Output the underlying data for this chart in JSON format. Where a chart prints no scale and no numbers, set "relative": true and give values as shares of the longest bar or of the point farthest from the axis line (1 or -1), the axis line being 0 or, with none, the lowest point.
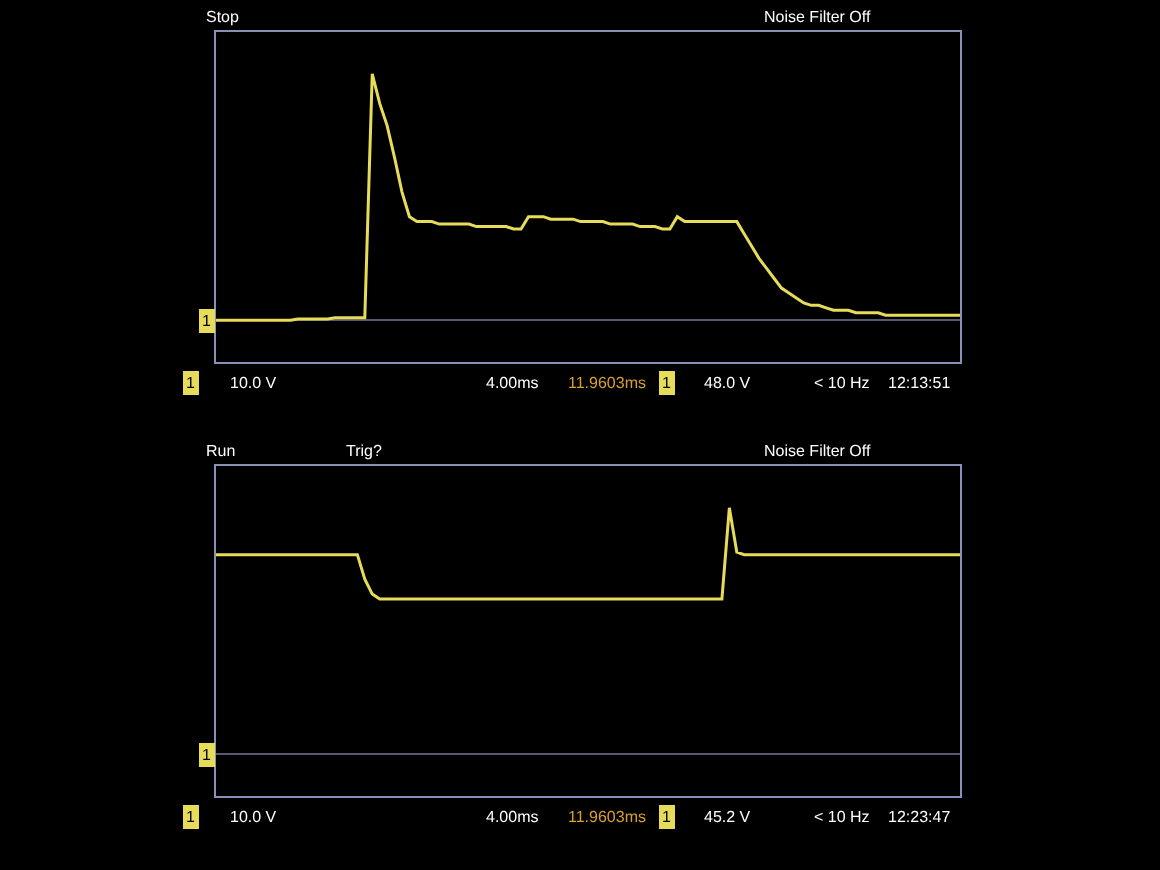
{
  "chart_data": [
    {
      "type": "line",
      "relative": true,
      "tick_labels": false,
      "color": "#e6dc5a",
      "categories": [
        null,
        null,
        null,
        null,
        null,
        null,
        null,
        null,
        null,
        null,
        null,
        null,
        null,
        null,
        null,
        null,
        null,
        null,
        null,
        null,
        null,
        null,
        null,
        null,
        null,
        null,
        null,
        null,
        null,
        null,
        null,
        null,
        null,
        null,
        null,
        null,
        null,
        null,
        null,
        null,
        null,
        null,
        null,
        null,
        null,
        null,
        null,
        null,
        null,
        null,
        null,
        null,
        null,
        null,
        null,
        null,
        null,
        null,
        null,
        null,
        null,
        null,
        null,
        null,
        null,
        null,
        null,
        null,
        null,
        null,
        null,
        null,
        null,
        null,
        null,
        null,
        null,
        null,
        null,
        null,
        null,
        null,
        null,
        null,
        null,
        null,
        null,
        null,
        null,
        null,
        null,
        null,
        null,
        null,
        null,
        null,
        null,
        null,
        null,
        null,
        null
      ],
      "values": [
        0,
        0,
        0,
        0,
        0,
        0,
        0,
        0,
        0,
        0,
        0,
        0.005,
        0.005,
        0.005,
        0.005,
        0.005,
        0.01,
        0.01,
        0.01,
        0.01,
        0.01,
        1,
        0.88,
        0.79,
        0.66,
        0.52,
        0.42,
        0.4,
        0.4,
        0.4,
        0.39,
        0.39,
        0.39,
        0.39,
        0.39,
        0.38,
        0.38,
        0.38,
        0.38,
        0.38,
        0.37,
        0.37,
        0.42,
        0.42,
        0.42,
        0.41,
        0.41,
        0.41,
        0.41,
        0.4,
        0.4,
        0.4,
        0.4,
        0.39,
        0.39,
        0.39,
        0.39,
        0.38,
        0.38,
        0.38,
        0.37,
        0.37,
        0.42,
        0.4,
        0.4,
        0.4,
        0.4,
        0.4,
        0.4,
        0.4,
        0.4,
        0.35,
        0.3,
        0.25,
        0.21,
        0.17,
        0.13,
        0.11,
        0.09,
        0.07,
        0.06,
        0.06,
        0.05,
        0.04,
        0.04,
        0.04,
        0.03,
        0.03,
        0.03,
        0.03,
        0.02,
        0.02,
        0.02,
        0.02,
        0.02,
        0.02,
        0.02,
        0.02,
        0.02,
        0.02,
        0.02
      ],
      "annotations": [
        "Stop",
        "Noise Filter Off",
        "1",
        "10.0 V",
        "4.00ms",
        "11.9603ms",
        "1",
        "48.0 V",
        "< 10 Hz",
        "12:13:51",
        {
          "text": "1",
          "y": 0
        }
      ]
    },
    {
      "type": "line",
      "relative": true,
      "tick_labels": false,
      "color": "#e6dc5a",
      "categories": [
        null,
        null,
        null,
        null,
        null,
        null,
        null,
        null,
        null,
        null,
        null,
        null,
        null,
        null,
        null,
        null,
        null,
        null,
        null,
        null,
        null,
        null,
        null,
        null,
        null,
        null,
        null,
        null,
        null,
        null,
        null,
        null,
        null,
        null,
        null,
        null,
        null,
        null,
        null,
        null,
        null,
        null,
        null,
        null,
        null,
        null,
        null,
        null,
        null,
        null,
        null,
        null,
        null,
        null,
        null,
        null,
        null,
        null,
        null,
        null,
        null,
        null,
        null,
        null,
        null,
        null,
        null,
        null,
        null,
        null,
        null,
        null,
        null,
        null,
        null,
        null,
        null,
        null,
        null,
        null,
        null,
        null,
        null,
        null,
        null,
        null,
        null,
        null,
        null,
        null,
        null,
        null,
        null,
        null,
        null,
        null,
        null,
        null,
        null,
        null,
        null
      ],
      "values": [
        0.81,
        0.81,
        0.81,
        0.81,
        0.81,
        0.81,
        0.81,
        0.81,
        0.81,
        0.81,
        0.81,
        0.81,
        0.81,
        0.81,
        0.81,
        0.81,
        0.81,
        0.81,
        0.81,
        0.81,
        0.71,
        0.65,
        0.63,
        0.63,
        0.63,
        0.63,
        0.63,
        0.63,
        0.63,
        0.63,
        0.63,
        0.63,
        0.63,
        0.63,
        0.63,
        0.63,
        0.63,
        0.63,
        0.63,
        0.63,
        0.63,
        0.63,
        0.63,
        0.63,
        0.63,
        0.63,
        0.63,
        0.63,
        0.63,
        0.63,
        0.63,
        0.63,
        0.63,
        0.63,
        0.63,
        0.63,
        0.63,
        0.63,
        0.63,
        0.63,
        0.63,
        0.63,
        0.63,
        0.63,
        0.63,
        0.63,
        0.63,
        0.63,
        0.63,
        1,
        0.82,
        0.81,
        0.81,
        0.81,
        0.81,
        0.81,
        0.81,
        0.81,
        0.81,
        0.81,
        0.81,
        0.81,
        0.81,
        0.81,
        0.81,
        0.81,
        0.81,
        0.81,
        0.81,
        0.81,
        0.81,
        0.81,
        0.81,
        0.81,
        0.81,
        0.81,
        0.81,
        0.81,
        0.81,
        0.81,
        0.81
      ],
      "annotations": [
        "Run",
        "Trig?",
        "Noise Filter Off",
        "1",
        "10.0 V",
        "4.00ms",
        "11.9603ms",
        "1",
        "45.2 V",
        "< 10 Hz",
        "12:23:47",
        {
          "text": "1",
          "y": 0
        }
      ]
    }
  ]
}
